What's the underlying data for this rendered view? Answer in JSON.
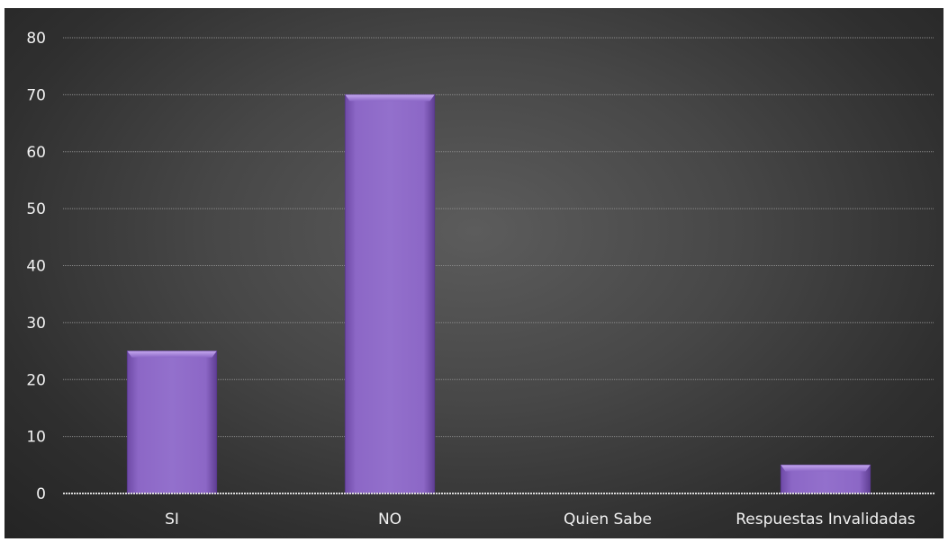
{
  "chart_data": {
    "type": "bar",
    "categories": [
      "SI",
      "NO",
      "Quien Sabe",
      "Respuestas Invalidadas"
    ],
    "values": [
      25,
      70,
      0,
      5
    ],
    "ylim": [
      0,
      80
    ],
    "yticks": [
      0,
      10,
      20,
      30,
      40,
      50,
      60,
      70,
      80
    ],
    "grid": true,
    "bar_color": "#8a63c4",
    "bar_edge_color": "#5a3a8e",
    "background_color": "#474747"
  }
}
